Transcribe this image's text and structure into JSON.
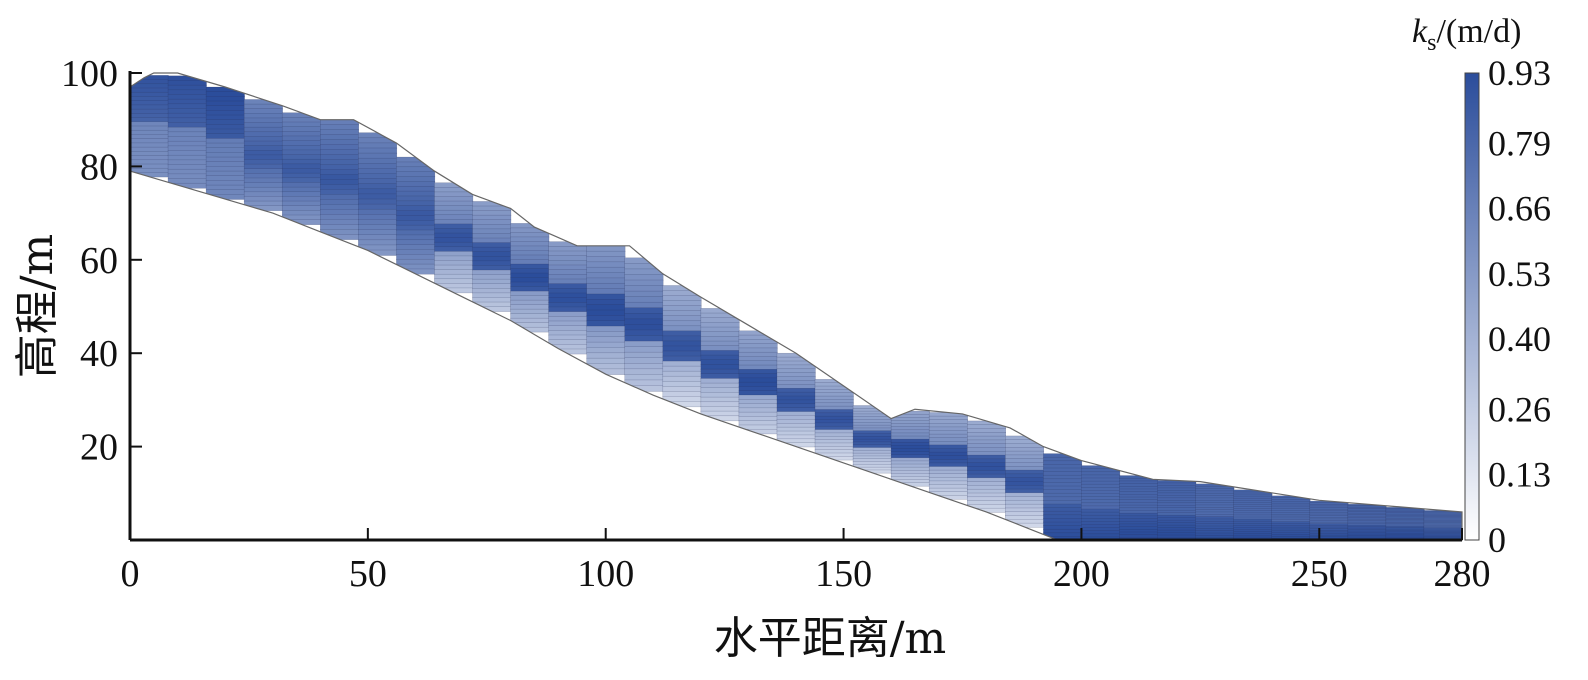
{
  "chart_data": {
    "type": "heatmap",
    "title": "",
    "xlabel": "水平距离/m",
    "ylabel": "高程/m",
    "xlim": [
      0,
      280
    ],
    "ylim": [
      0,
      100
    ],
    "x_ticks": [
      "0",
      "50",
      "100",
      "150",
      "200",
      "250",
      "280"
    ],
    "x_tick_values": [
      0,
      50,
      100,
      150,
      200,
      250,
      280
    ],
    "y_ticks": [
      "20",
      "40",
      "60",
      "80",
      "100"
    ],
    "y_tick_values": [
      20,
      40,
      60,
      80,
      100
    ],
    "colorbar": {
      "title_var": "k",
      "title_sub": "s",
      "title_unit": "/(m/d)",
      "ticks": [
        "0.93",
        "0.79",
        "0.66",
        "0.53",
        "0.40",
        "0.26",
        "0.13",
        "0"
      ],
      "tick_values": [
        0.93,
        0.79,
        0.66,
        0.53,
        0.4,
        0.26,
        0.13,
        0
      ],
      "range": [
        0,
        0.93
      ],
      "colors": [
        "#ffffff",
        "#2b4d9b"
      ]
    },
    "grid": false,
    "slope_profile": {
      "top_surface": [
        [
          0,
          97
        ],
        [
          3,
          99
        ],
        [
          5,
          100
        ],
        [
          10,
          100
        ],
        [
          20,
          97
        ],
        [
          32,
          93
        ],
        [
          40,
          90
        ],
        [
          47,
          90
        ],
        [
          56,
          85
        ],
        [
          64,
          79
        ],
        [
          72,
          74
        ],
        [
          80,
          71
        ],
        [
          85,
          67
        ],
        [
          94,
          63
        ],
        [
          105,
          63
        ],
        [
          112,
          57
        ],
        [
          120,
          52
        ],
        [
          130,
          46
        ],
        [
          140,
          40
        ],
        [
          150,
          33
        ],
        [
          160,
          26
        ],
        [
          165,
          28
        ],
        [
          175,
          27
        ],
        [
          185,
          24
        ],
        [
          192,
          20
        ],
        [
          200,
          17
        ],
        [
          215,
          13
        ],
        [
          225,
          12.5
        ],
        [
          250,
          8.5
        ],
        [
          280,
          6
        ]
      ],
      "bottom_surface": [
        [
          0,
          79
        ],
        [
          10,
          76
        ],
        [
          20,
          73
        ],
        [
          30,
          70
        ],
        [
          40,
          66
        ],
        [
          50,
          62
        ],
        [
          60,
          57
        ],
        [
          70,
          52
        ],
        [
          80,
          47
        ],
        [
          90,
          41
        ],
        [
          100,
          35.5
        ],
        [
          110,
          31
        ],
        [
          120,
          27
        ],
        [
          130,
          23.5
        ],
        [
          140,
          20
        ],
        [
          150,
          16.5
        ],
        [
          160,
          13
        ],
        [
          170,
          9.5
        ],
        [
          180,
          6
        ],
        [
          190,
          2
        ],
        [
          195,
          0
        ],
        [
          280,
          0
        ]
      ]
    },
    "ks_column_profiles": [
      {
        "x": [
          0,
          25
        ],
        "low_zone": [
          0.62,
          0.66
        ],
        "high_zone": [
          0.9,
          0.93
        ]
      },
      {
        "x": [
          25,
          65
        ],
        "low_zone": [
          0.55,
          0.66
        ],
        "high_zone": [
          0.8,
          0.88
        ]
      },
      {
        "x": [
          65,
          110
        ],
        "low_zone": [
          0.3,
          0.52
        ],
        "high_zone": [
          0.75,
          0.93
        ]
      },
      {
        "x": [
          110,
          190
        ],
        "low_zone": [
          0.22,
          0.45
        ],
        "high_zone": [
          0.7,
          0.93
        ]
      },
      {
        "x": [
          190,
          280
        ],
        "low_zone": [
          0.7,
          0.8
        ],
        "high_zone": [
          0.85,
          0.93
        ]
      }
    ]
  }
}
